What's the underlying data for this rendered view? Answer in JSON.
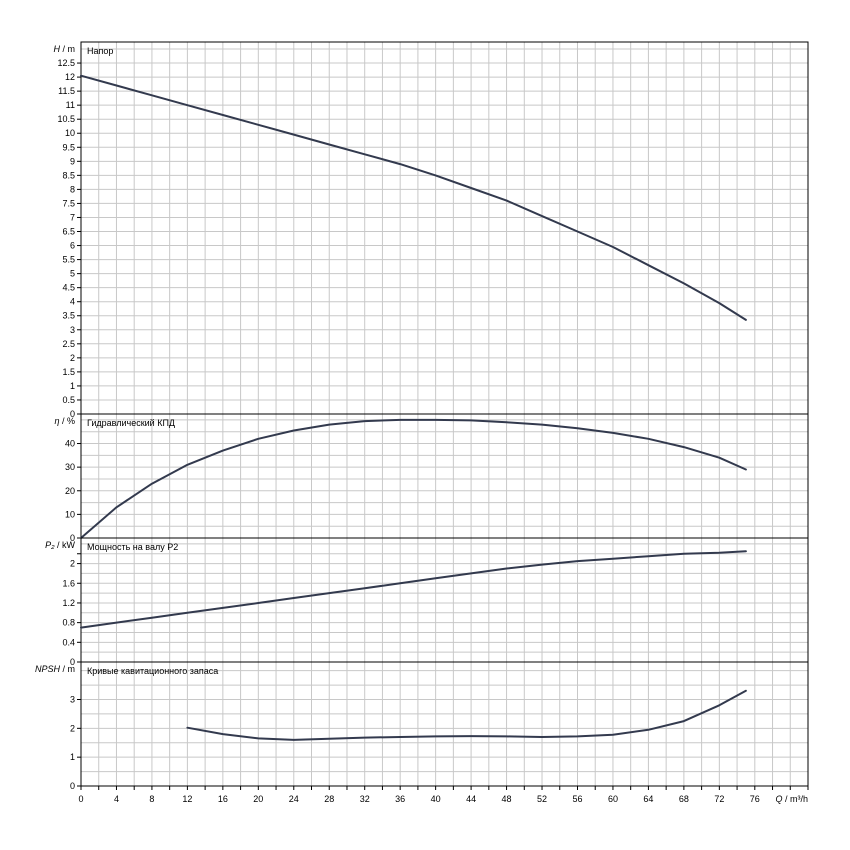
{
  "chart_data": [
    {
      "type": "line",
      "title": "Напор",
      "ylabel_symbol": "H",
      "ylabel_unit": "m",
      "ylim": [
        0,
        13.25
      ],
      "yticks": [
        0,
        0.5,
        1,
        1.5,
        2,
        2.5,
        3,
        3.5,
        4,
        4.5,
        5,
        5.5,
        6,
        6.5,
        7,
        7.5,
        8,
        8.5,
        9,
        9.5,
        10,
        10.5,
        11,
        11.5,
        12,
        12.5
      ],
      "grid": true,
      "series": [
        {
          "x": [
            0,
            4,
            8,
            12,
            16,
            20,
            24,
            28,
            32,
            36,
            40,
            44,
            48,
            52,
            56,
            60,
            64,
            68,
            72,
            75
          ],
          "y": [
            12.05,
            11.7,
            11.35,
            11.0,
            10.65,
            10.3,
            9.95,
            9.6,
            9.25,
            8.9,
            8.5,
            8.05,
            7.6,
            7.05,
            6.5,
            5.95,
            5.3,
            4.65,
            3.95,
            3.35
          ]
        }
      ]
    },
    {
      "type": "line",
      "title": "Гидравлический КПД",
      "ylabel_symbol": "η",
      "ylabel_unit": "%",
      "ylim": [
        0,
        52.5
      ],
      "yticks": [
        0,
        10,
        20,
        30,
        40
      ],
      "grid": true,
      "series": [
        {
          "x": [
            0,
            4,
            8,
            12,
            16,
            20,
            24,
            28,
            32,
            36,
            40,
            44,
            48,
            52,
            56,
            60,
            64,
            68,
            72,
            75
          ],
          "y": [
            0,
            13,
            23,
            31,
            37,
            42,
            45.5,
            48,
            49.5,
            50,
            50,
            49.8,
            49,
            48,
            46.5,
            44.5,
            42,
            38.5,
            34,
            29
          ]
        }
      ]
    },
    {
      "type": "line",
      "title": "Мощность на валу P2",
      "ylabel_symbol": "P₂",
      "ylabel_unit": "kW",
      "ylim": [
        0,
        2.52
      ],
      "yticks": [
        0,
        0.4,
        0.8,
        1.2,
        1.6,
        2,
        2.2
      ],
      "ytick_labels": [
        "0",
        "0.4",
        "0.8",
        "1.2",
        "1.6",
        "2",
        ""
      ],
      "grid": true,
      "series": [
        {
          "x": [
            0,
            4,
            8,
            12,
            16,
            20,
            24,
            28,
            32,
            36,
            40,
            44,
            48,
            52,
            56,
            60,
            64,
            68,
            72,
            75
          ],
          "y": [
            0.7,
            0.8,
            0.9,
            1.0,
            1.1,
            1.2,
            1.3,
            1.4,
            1.5,
            1.6,
            1.7,
            1.8,
            1.9,
            1.98,
            2.05,
            2.1,
            2.15,
            2.2,
            2.22,
            2.25
          ]
        }
      ]
    },
    {
      "type": "line",
      "title": "Кривые кавитационного запаса",
      "ylabel_symbol": "NPSH",
      "ylabel_unit": "m",
      "ylim": [
        0,
        4.3
      ],
      "yticks": [
        0,
        1,
        2,
        3
      ],
      "grid": true,
      "series": [
        {
          "x": [
            12,
            16,
            20,
            24,
            28,
            32,
            36,
            40,
            44,
            48,
            52,
            56,
            60,
            64,
            68,
            72,
            75
          ],
          "y": [
            2.02,
            1.8,
            1.65,
            1.6,
            1.64,
            1.68,
            1.7,
            1.72,
            1.73,
            1.72,
            1.7,
            1.72,
            1.78,
            1.95,
            2.25,
            2.8,
            3.3
          ]
        }
      ]
    }
  ],
  "xaxis": {
    "label_symbol": "Q",
    "label_unit": "m³/h",
    "xlim": [
      0,
      82
    ],
    "ticks": [
      0,
      4,
      8,
      12,
      16,
      20,
      24,
      28,
      32,
      36,
      40,
      44,
      48,
      52,
      56,
      60,
      64,
      68,
      72,
      76
    ]
  },
  "colors": {
    "curve": "#333a4e",
    "grid": "#c8c8c8",
    "frame": "#000000"
  }
}
